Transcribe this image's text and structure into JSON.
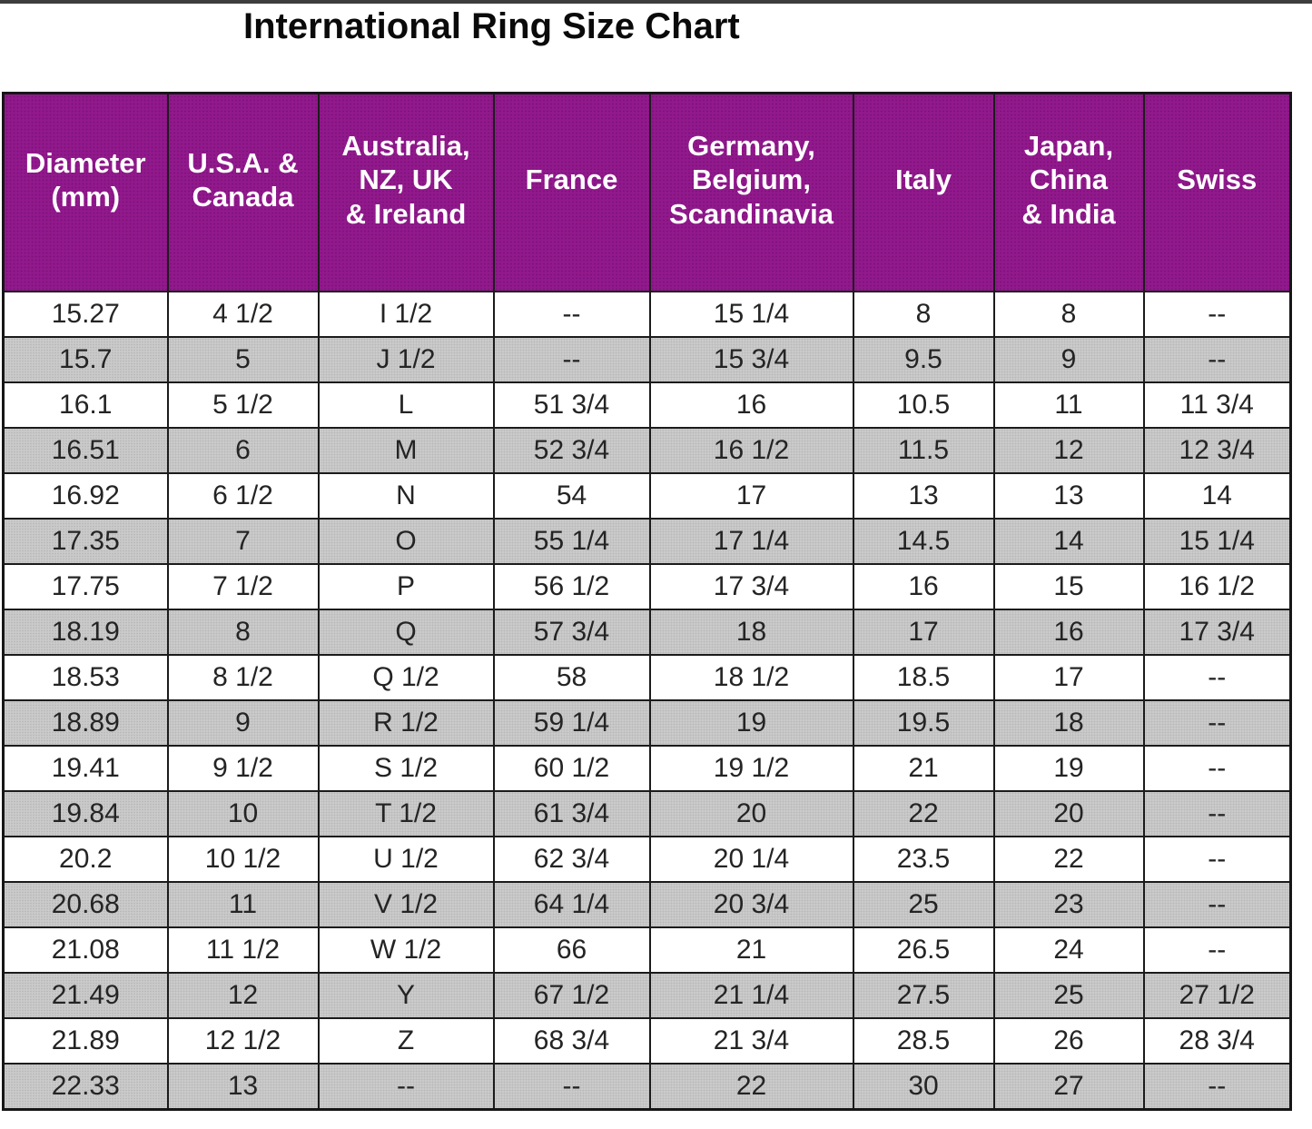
{
  "page": {
    "title": "International Ring Size Chart"
  },
  "colors": {
    "header_bg": "#91198c",
    "header_text": "#ffffff",
    "alt_row_bg": "#cbcbcb",
    "row_bg": "#ffffff",
    "border": "#1b1b1b",
    "title_text": "#0a0a0a"
  },
  "chart_data": {
    "type": "table",
    "title": "International Ring Size Chart",
    "columns": [
      "Diameter (mm)",
      "U.S.A. & Canada",
      "Australia, NZ, UK & Ireland",
      "France",
      "Germany, Belgium, Scandinavia",
      "Italy",
      "Japan, China & India",
      "Swiss"
    ],
    "header_display": [
      "Diameter\n(mm)",
      "U.S.A. &\nCanada",
      "Australia,\nNZ, UK\n& Ireland",
      "France",
      "Germany,\nBelgium,\nScandinavia",
      "Italy",
      "Japan,\nChina\n& India",
      "Swiss"
    ],
    "rows": [
      [
        "15.27",
        "4 1/2",
        "I 1/2",
        "--",
        "15 1/4",
        "8",
        "8",
        "--"
      ],
      [
        "15.7",
        "5",
        "J 1/2",
        "--",
        "15 3/4",
        "9.5",
        "9",
        "--"
      ],
      [
        "16.1",
        "5 1/2",
        "L",
        "51 3/4",
        "16",
        "10.5",
        "11",
        "11 3/4"
      ],
      [
        "16.51",
        "6",
        "M",
        "52 3/4",
        "16 1/2",
        "11.5",
        "12",
        "12 3/4"
      ],
      [
        "16.92",
        "6 1/2",
        "N",
        "54",
        "17",
        "13",
        "13",
        "14"
      ],
      [
        "17.35",
        "7",
        "O",
        "55 1/4",
        "17 1/4",
        "14.5",
        "14",
        "15 1/4"
      ],
      [
        "17.75",
        "7 1/2",
        "P",
        "56 1/2",
        "17 3/4",
        "16",
        "15",
        "16 1/2"
      ],
      [
        "18.19",
        "8",
        "Q",
        "57 3/4",
        "18",
        "17",
        "16",
        "17 3/4"
      ],
      [
        "18.53",
        "8 1/2",
        "Q 1/2",
        "58",
        "18 1/2",
        "18.5",
        "17",
        "--"
      ],
      [
        "18.89",
        "9",
        "R 1/2",
        "59 1/4",
        "19",
        "19.5",
        "18",
        "--"
      ],
      [
        "19.41",
        "9 1/2",
        "S 1/2",
        "60 1/2",
        "19 1/2",
        "21",
        "19",
        "--"
      ],
      [
        "19.84",
        "10",
        "T 1/2",
        "61 3/4",
        "20",
        "22",
        "20",
        "--"
      ],
      [
        "20.2",
        "10 1/2",
        "U 1/2",
        "62 3/4",
        "20 1/4",
        "23.5",
        "22",
        "--"
      ],
      [
        "20.68",
        "11",
        "V 1/2",
        "64 1/4",
        "20 3/4",
        "25",
        "23",
        "--"
      ],
      [
        "21.08",
        "11 1/2",
        "W 1/2",
        "66",
        "21",
        "26.5",
        "24",
        "--"
      ],
      [
        "21.49",
        "12",
        "Y",
        "67 1/2",
        "21 1/4",
        "27.5",
        "25",
        "27 1/2"
      ],
      [
        "21.89",
        "12 1/2",
        "Z",
        "68 3/4",
        "21 3/4",
        "28.5",
        "26",
        "28 3/4"
      ],
      [
        "22.33",
        "13",
        "--",
        "--",
        "22",
        "30",
        "27",
        "--"
      ]
    ],
    "layout": {
      "grid": true,
      "alternating_row_shading": "even rows shaded gray",
      "header_style": "purple background, white bold text"
    }
  }
}
